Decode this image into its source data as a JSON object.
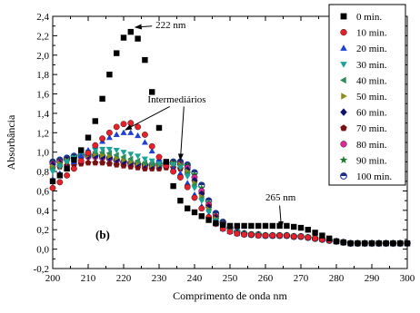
{
  "chart_data": {
    "type": "scatter",
    "xlabel": "Comprimento de onda nm",
    "ylabel": "Absorbância",
    "xlim": [
      200,
      300
    ],
    "ylim": [
      -0.2,
      2.4
    ],
    "xticks": [
      "200",
      "210",
      "220",
      "230",
      "240",
      "250",
      "260",
      "270",
      "280",
      "290",
      "300"
    ],
    "yticks": [
      "-0,2",
      "0,0",
      "0,2",
      "0,4",
      "0,6",
      "0,8",
      "1,0",
      "1,2",
      "1,4",
      "1,6",
      "1,8",
      "2,0",
      "2,2",
      "2,4"
    ],
    "grid": false,
    "legend_position": "top-right",
    "panel_label": "(b)",
    "annotations": [
      {
        "text": "222 nm",
        "x": 222,
        "y": 2.25
      },
      {
        "text": "Intermediários",
        "x": 236,
        "y": 0.9
      },
      {
        "text": "265 nm",
        "x": 265,
        "y": 0.24
      }
    ],
    "x": [
      200,
      202,
      204,
      206,
      208,
      210,
      212,
      214,
      216,
      218,
      220,
      222,
      224,
      226,
      228,
      230,
      232,
      234,
      236,
      238,
      240,
      242,
      244,
      246,
      248,
      250,
      252,
      254,
      256,
      258,
      260,
      262,
      264,
      266,
      268,
      270,
      272,
      274,
      276,
      278,
      280,
      282,
      284,
      286,
      288,
      290,
      292,
      294,
      296,
      298,
      300
    ],
    "series": [
      {
        "name": "0 min.",
        "marker": "square",
        "color": "#000000",
        "values": [
          0.7,
          0.76,
          0.83,
          0.92,
          1.02,
          1.15,
          1.32,
          1.55,
          1.8,
          2.02,
          2.18,
          2.24,
          2.17,
          1.95,
          1.62,
          1.25,
          0.9,
          0.65,
          0.5,
          0.42,
          0.38,
          0.34,
          0.3,
          0.27,
          0.25,
          0.24,
          0.24,
          0.24,
          0.24,
          0.24,
          0.24,
          0.24,
          0.24,
          0.24,
          0.23,
          0.22,
          0.2,
          0.17,
          0.14,
          0.11,
          0.08,
          0.07,
          0.06,
          0.06,
          0.06,
          0.06,
          0.06,
          0.06,
          0.06,
          0.06,
          0.06
        ]
      },
      {
        "name": "10 min.",
        "marker": "circle",
        "color": "#e8202a",
        "values": [
          0.63,
          0.69,
          0.76,
          0.83,
          0.91,
          0.99,
          1.07,
          1.14,
          1.2,
          1.26,
          1.29,
          1.3,
          1.26,
          1.18,
          1.06,
          0.95,
          0.86,
          0.8,
          0.74,
          0.64,
          0.53,
          0.42,
          0.33,
          0.26,
          0.21,
          0.18,
          0.16,
          0.15,
          0.15,
          0.14,
          0.14,
          0.14,
          0.14,
          0.14,
          0.13,
          0.13,
          0.12,
          0.11,
          0.1,
          0.09,
          0.08,
          0.07,
          0.06,
          0.06,
          0.06,
          0.06,
          0.06,
          0.06,
          0.06,
          0.06,
          0.06
        ]
      },
      {
        "name": "20 min.",
        "marker": "triangle-up",
        "color": "#1f3fd6",
        "values": [
          0.72,
          0.78,
          0.84,
          0.9,
          0.96,
          1.02,
          1.07,
          1.11,
          1.15,
          1.18,
          1.2,
          1.2,
          1.17,
          1.1,
          1.01,
          0.93,
          0.87,
          0.83,
          0.78,
          0.68,
          0.56,
          0.44,
          0.34,
          0.26,
          0.21,
          0.18,
          0.16,
          0.15,
          0.15,
          0.14,
          0.14,
          0.14,
          0.14,
          0.14,
          0.13,
          0.13,
          0.12,
          0.11,
          0.1,
          0.09,
          0.08,
          0.07,
          0.06,
          0.06,
          0.06,
          0.06,
          0.06,
          0.06,
          0.06,
          0.06,
          0.06
        ]
      },
      {
        "name": "30 min.",
        "marker": "triangle-down",
        "color": "#1aa39a",
        "values": [
          0.8,
          0.85,
          0.9,
          0.94,
          0.98,
          1.0,
          1.02,
          1.03,
          1.03,
          1.02,
          1.0,
          0.98,
          0.96,
          0.93,
          0.91,
          0.89,
          0.88,
          0.87,
          0.84,
          0.75,
          0.63,
          0.5,
          0.38,
          0.29,
          0.23,
          0.19,
          0.17,
          0.16,
          0.15,
          0.15,
          0.14,
          0.14,
          0.14,
          0.14,
          0.13,
          0.13,
          0.12,
          0.11,
          0.1,
          0.09,
          0.08,
          0.07,
          0.06,
          0.06,
          0.06,
          0.06,
          0.06,
          0.06,
          0.06,
          0.06,
          0.06
        ]
      },
      {
        "name": "40 min.",
        "marker": "triangle-left",
        "color": "#2e8b57",
        "values": [
          0.83,
          0.87,
          0.91,
          0.94,
          0.97,
          0.99,
          1.0,
          1.0,
          0.99,
          0.97,
          0.95,
          0.93,
          0.91,
          0.89,
          0.88,
          0.88,
          0.88,
          0.88,
          0.86,
          0.78,
          0.66,
          0.52,
          0.4,
          0.3,
          0.24,
          0.2,
          0.17,
          0.16,
          0.15,
          0.15,
          0.14,
          0.14,
          0.14,
          0.14,
          0.13,
          0.13,
          0.12,
          0.11,
          0.1,
          0.09,
          0.08,
          0.07,
          0.06,
          0.06,
          0.06,
          0.06,
          0.06,
          0.06,
          0.06,
          0.06,
          0.06
        ]
      },
      {
        "name": "50 min.",
        "marker": "triangle-right",
        "color": "#8c8c1a",
        "values": [
          0.85,
          0.88,
          0.91,
          0.94,
          0.96,
          0.97,
          0.98,
          0.97,
          0.96,
          0.94,
          0.92,
          0.9,
          0.89,
          0.88,
          0.87,
          0.87,
          0.88,
          0.88,
          0.87,
          0.8,
          0.68,
          0.54,
          0.41,
          0.31,
          0.24,
          0.2,
          0.17,
          0.16,
          0.15,
          0.15,
          0.14,
          0.14,
          0.14,
          0.14,
          0.13,
          0.13,
          0.12,
          0.11,
          0.1,
          0.09,
          0.08,
          0.07,
          0.06,
          0.06,
          0.06,
          0.06,
          0.06,
          0.06,
          0.06,
          0.06,
          0.06
        ]
      },
      {
        "name": "60 min.",
        "marker": "diamond",
        "color": "#12126e",
        "values": [
          0.87,
          0.89,
          0.92,
          0.94,
          0.95,
          0.96,
          0.96,
          0.95,
          0.94,
          0.92,
          0.9,
          0.89,
          0.88,
          0.87,
          0.86,
          0.86,
          0.87,
          0.88,
          0.87,
          0.82,
          0.71,
          0.57,
          0.43,
          0.32,
          0.25,
          0.2,
          0.17,
          0.16,
          0.15,
          0.15,
          0.14,
          0.14,
          0.14,
          0.14,
          0.13,
          0.13,
          0.12,
          0.11,
          0.1,
          0.09,
          0.08,
          0.07,
          0.06,
          0.06,
          0.06,
          0.06,
          0.06,
          0.06,
          0.06,
          0.06,
          0.06
        ]
      },
      {
        "name": "70 min.",
        "marker": "pentagon",
        "color": "#7a1010",
        "values": [
          0.84,
          0.85,
          0.86,
          0.87,
          0.88,
          0.89,
          0.89,
          0.89,
          0.88,
          0.87,
          0.86,
          0.85,
          0.84,
          0.83,
          0.83,
          0.83,
          0.84,
          0.84,
          0.83,
          0.79,
          0.7,
          0.57,
          0.44,
          0.33,
          0.25,
          0.2,
          0.17,
          0.16,
          0.15,
          0.15,
          0.14,
          0.14,
          0.14,
          0.14,
          0.13,
          0.13,
          0.12,
          0.11,
          0.1,
          0.09,
          0.08,
          0.07,
          0.06,
          0.06,
          0.06,
          0.06,
          0.06,
          0.06,
          0.06,
          0.06,
          0.06
        ]
      },
      {
        "name": "80 min.",
        "marker": "circle",
        "color": "#e0289a",
        "values": [
          0.88,
          0.9,
          0.92,
          0.94,
          0.95,
          0.95,
          0.95,
          0.94,
          0.93,
          0.91,
          0.89,
          0.88,
          0.87,
          0.86,
          0.86,
          0.86,
          0.87,
          0.88,
          0.88,
          0.84,
          0.74,
          0.6,
          0.46,
          0.34,
          0.26,
          0.21,
          0.17,
          0.16,
          0.15,
          0.15,
          0.14,
          0.14,
          0.14,
          0.14,
          0.13,
          0.13,
          0.12,
          0.11,
          0.1,
          0.09,
          0.08,
          0.07,
          0.06,
          0.06,
          0.06,
          0.06,
          0.06,
          0.06,
          0.06,
          0.06,
          0.06
        ]
      },
      {
        "name": "90 min.",
        "marker": "star",
        "color": "#1e7a2e",
        "values": [
          0.89,
          0.91,
          0.93,
          0.95,
          0.96,
          0.96,
          0.96,
          0.95,
          0.93,
          0.91,
          0.89,
          0.88,
          0.87,
          0.87,
          0.87,
          0.87,
          0.88,
          0.89,
          0.89,
          0.86,
          0.77,
          0.63,
          0.48,
          0.35,
          0.27,
          0.21,
          0.18,
          0.16,
          0.15,
          0.15,
          0.14,
          0.14,
          0.14,
          0.14,
          0.13,
          0.13,
          0.12,
          0.11,
          0.1,
          0.09,
          0.08,
          0.07,
          0.06,
          0.06,
          0.06,
          0.06,
          0.06,
          0.06,
          0.06,
          0.06,
          0.06
        ]
      },
      {
        "name": "100 min.",
        "marker": "circle-half",
        "color": "#1a2f8a",
        "values": [
          0.9,
          0.92,
          0.94,
          0.96,
          0.97,
          0.97,
          0.97,
          0.96,
          0.94,
          0.92,
          0.9,
          0.89,
          0.88,
          0.87,
          0.87,
          0.88,
          0.89,
          0.9,
          0.9,
          0.87,
          0.79,
          0.66,
          0.5,
          0.37,
          0.28,
          0.22,
          0.18,
          0.16,
          0.15,
          0.15,
          0.14,
          0.14,
          0.14,
          0.14,
          0.13,
          0.13,
          0.12,
          0.11,
          0.1,
          0.09,
          0.08,
          0.07,
          0.06,
          0.06,
          0.06,
          0.06,
          0.06,
          0.06,
          0.06,
          0.06,
          0.06
        ]
      }
    ]
  }
}
